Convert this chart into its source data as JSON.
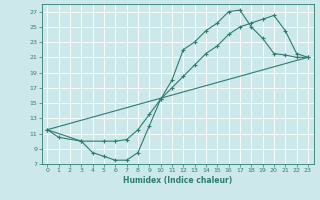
{
  "xlabel": "Humidex (Indice chaleur)",
  "background_color": "#cce8ea",
  "grid_color": "#ffffff",
  "line_color": "#2d7d6e",
  "xlim": [
    -0.5,
    23.5
  ],
  "ylim": [
    7,
    28
  ],
  "xticks": [
    0,
    1,
    2,
    3,
    4,
    5,
    6,
    7,
    8,
    9,
    10,
    11,
    12,
    13,
    14,
    15,
    16,
    17,
    18,
    19,
    20,
    21,
    22,
    23
  ],
  "yticks": [
    7,
    9,
    11,
    13,
    15,
    17,
    19,
    21,
    23,
    25,
    27
  ],
  "line1_x": [
    0,
    1,
    3,
    4,
    5,
    6,
    7,
    8,
    9,
    10,
    11,
    12,
    13,
    14,
    15,
    16,
    17,
    18,
    19,
    20,
    21,
    22,
    23
  ],
  "line1_y": [
    11.5,
    10.5,
    10.0,
    8.5,
    8.0,
    7.5,
    7.5,
    8.5,
    12.0,
    15.5,
    18.0,
    22.0,
    23.0,
    24.5,
    25.5,
    27.0,
    27.2,
    25.0,
    23.5,
    21.5,
    21.3,
    21.0,
    21.0
  ],
  "line2_x": [
    0,
    3,
    5,
    6,
    7,
    8,
    9,
    10,
    11,
    12,
    13,
    14,
    15,
    16,
    17,
    18,
    19,
    20,
    21,
    22,
    23
  ],
  "line2_y": [
    11.5,
    10.0,
    10.0,
    10.0,
    10.2,
    11.5,
    13.5,
    15.5,
    17.0,
    18.5,
    20.0,
    21.5,
    22.5,
    24.0,
    25.0,
    25.5,
    26.0,
    26.5,
    24.5,
    21.5,
    21.0
  ],
  "line3_x": [
    0,
    23
  ],
  "line3_y": [
    11.5,
    21.0
  ]
}
